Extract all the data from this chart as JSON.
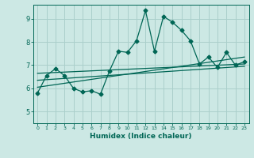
{
  "xlabel": "Humidex (Indice chaleur)",
  "background_color": "#cce8e4",
  "grid_color": "#aacfcb",
  "line_color": "#006655",
  "xlim": [
    -0.5,
    23.5
  ],
  "ylim": [
    4.5,
    9.6
  ],
  "yticks": [
    5,
    6,
    7,
    8,
    9
  ],
  "xticks": [
    0,
    1,
    2,
    3,
    4,
    5,
    6,
    7,
    8,
    9,
    10,
    11,
    12,
    13,
    14,
    15,
    16,
    17,
    18,
    19,
    20,
    21,
    22,
    23
  ],
  "main_line_x": [
    0,
    1,
    2,
    3,
    4,
    5,
    6,
    7,
    8,
    9,
    10,
    11,
    12,
    13,
    14,
    15,
    16,
    17,
    18,
    19,
    20,
    21,
    22,
    23
  ],
  "main_line_y": [
    5.8,
    6.55,
    6.85,
    6.55,
    6.0,
    5.85,
    5.9,
    5.75,
    6.75,
    7.6,
    7.55,
    8.05,
    9.35,
    7.6,
    9.1,
    8.85,
    8.5,
    8.05,
    7.05,
    7.35,
    6.9,
    7.55,
    7.0,
    7.15
  ],
  "trend_lines": [
    {
      "x": [
        0,
        23
      ],
      "y": [
        6.65,
        7.05
      ]
    },
    {
      "x": [
        0,
        23
      ],
      "y": [
        6.35,
        6.95
      ]
    },
    {
      "x": [
        0,
        23
      ],
      "y": [
        6.05,
        7.35
      ]
    }
  ],
  "marker_style": "D",
  "marker_size": 2.5,
  "line_width": 0.9
}
